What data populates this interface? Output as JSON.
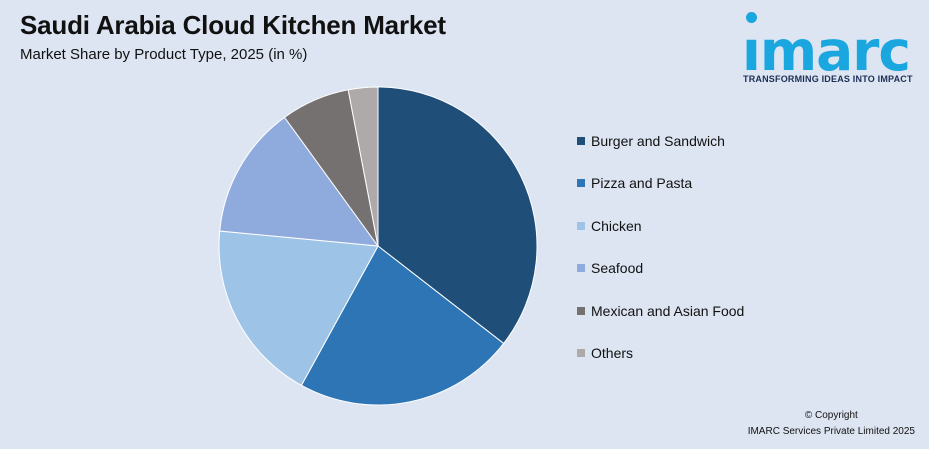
{
  "header": {
    "title": "Saudi Arabia Cloud Kitchen Market",
    "subtitle": "Market Share by Product Type, 2025 (in %)"
  },
  "logo": {
    "word": "ımarc",
    "tagline": "TRANSFORMING IDEAS INTO IMPACT",
    "color": "#1aa7df"
  },
  "chart_data": {
    "type": "pie",
    "start_angle_deg": 0,
    "direction": "clockwise",
    "legend_position": "right",
    "categories": [
      "Burger and Sandwich",
      "Pizza and Pasta",
      "Chicken",
      "Seafood",
      "Mexican and Asian Food",
      "Others"
    ],
    "values": [
      35.5,
      22.5,
      18.5,
      13.5,
      7.0,
      3.0
    ],
    "colors": [
      "#1f4e79",
      "#2e75b6",
      "#9dc3e6",
      "#8faadc",
      "#767171",
      "#aeaaaa"
    ]
  },
  "footer": {
    "line1": "© Copyright",
    "line2": "IMARC Services Private Limited 2025"
  }
}
